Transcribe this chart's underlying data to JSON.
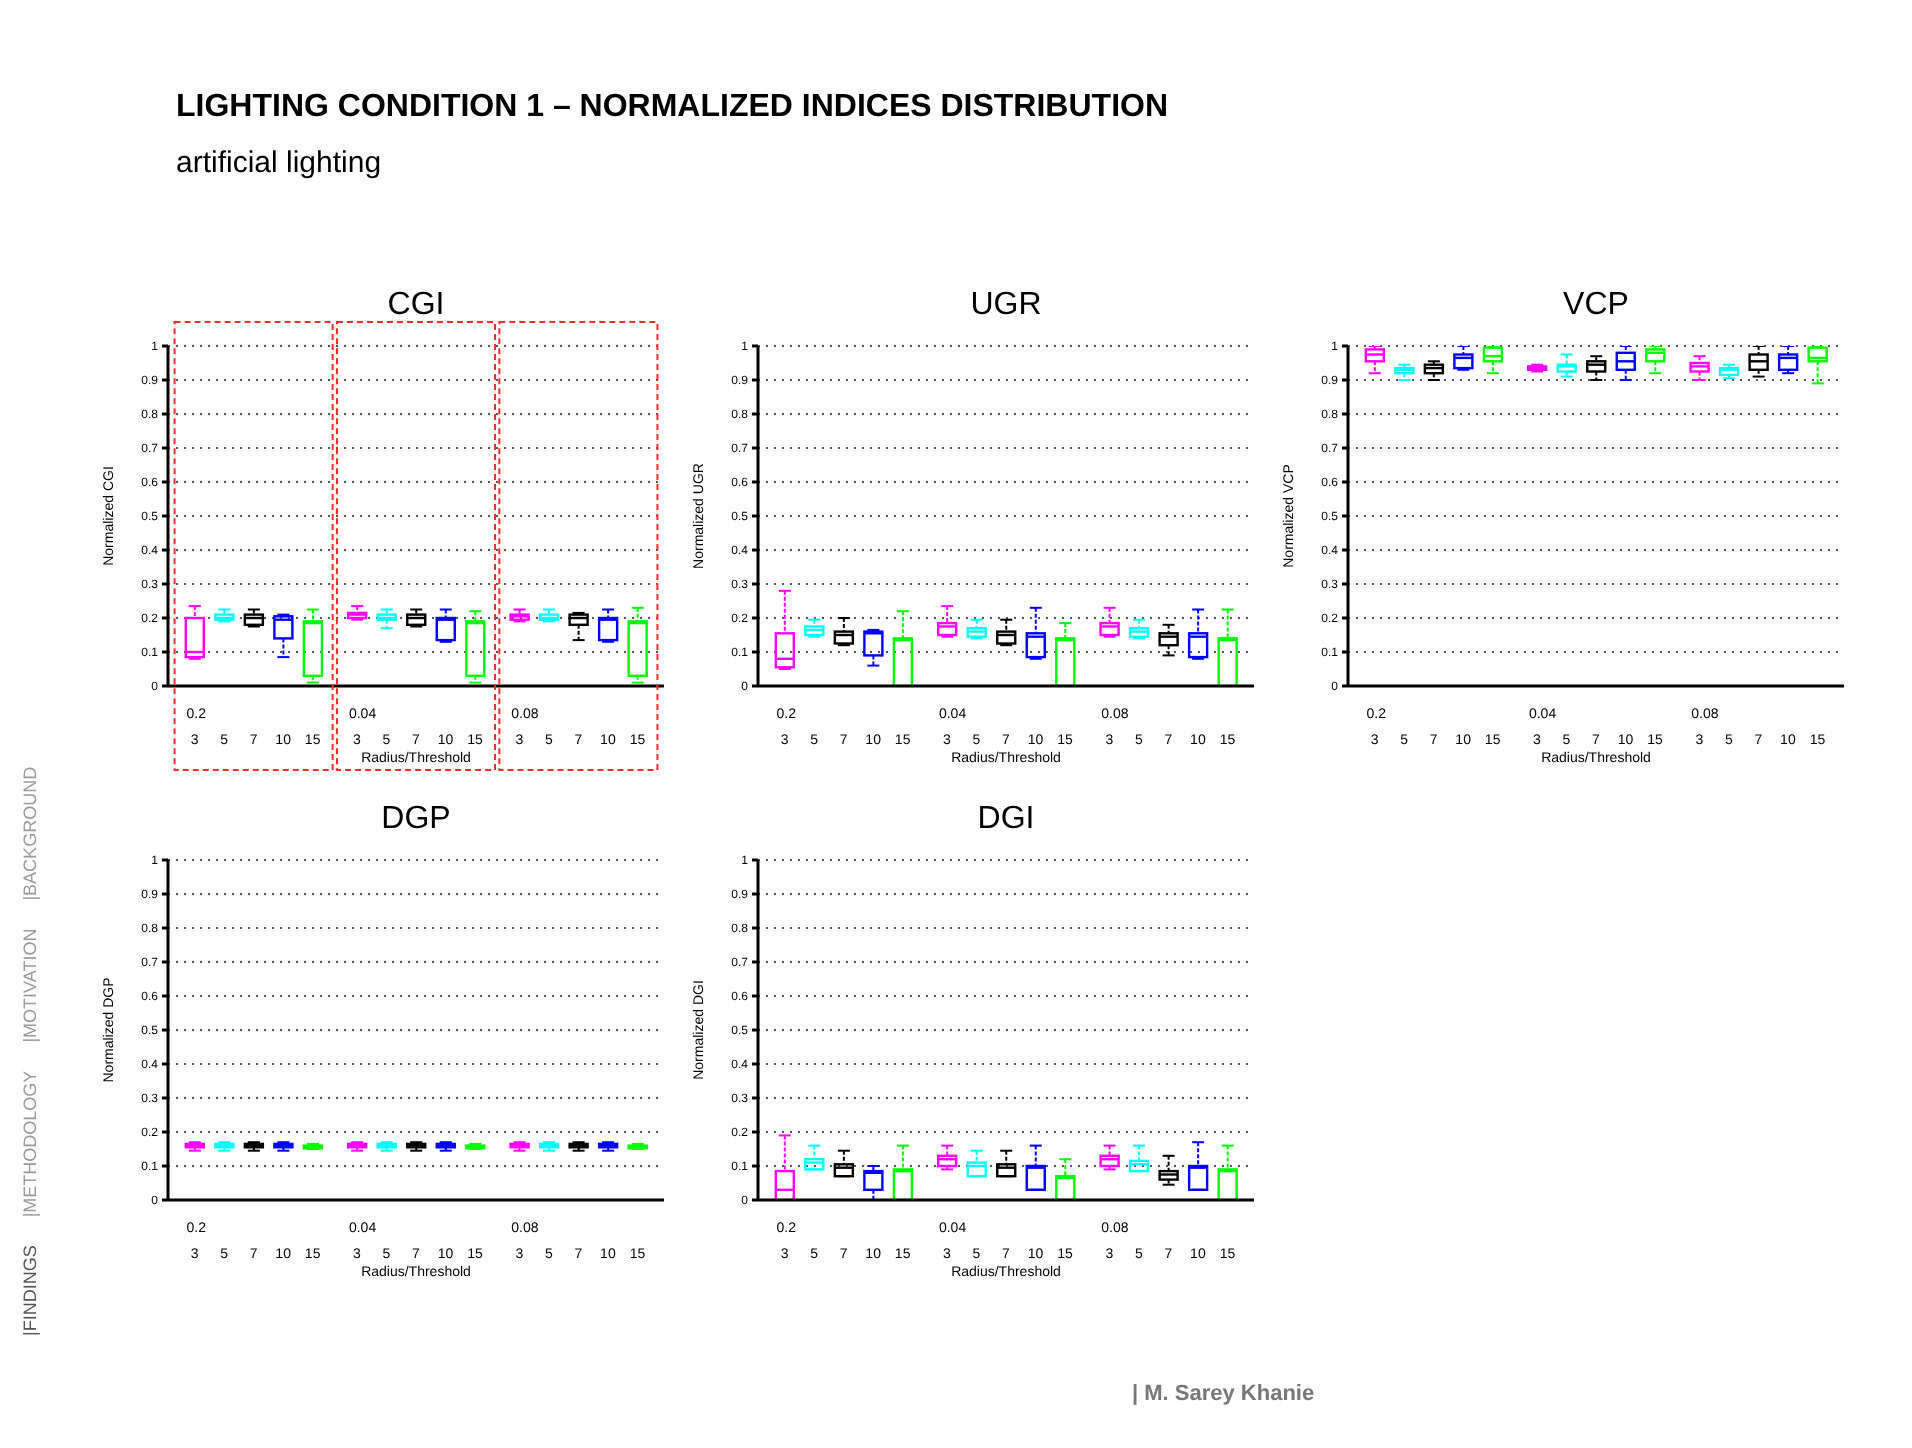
{
  "chart_data": [
    {
      "type": "other",
      "title": "LIGHTING CONDITION 1 – NORMALIZED INDICES DISTRIBUTION",
      "subtitle": "artificial lighting",
      "annotations": [
        "|BACKGROUND",
        "|MOTIVATION",
        "|METHODOLOGY",
        "|FINDINGS",
        "| M. Sarey Khanie"
      ]
    },
    {
      "type": "box",
      "title": "CGI",
      "xlabel": "Radius/Threshold",
      "ylabel": "Normalized CGI",
      "categories": [
        "3",
        "5",
        "7",
        "10",
        "15",
        "3",
        "5",
        "7",
        "10",
        "15",
        "3",
        "5",
        "7",
        "10",
        "15"
      ],
      "colors": [
        "#ff00ff",
        "#00ffff",
        "#000000",
        "#0000ff",
        "#00ff00",
        "#ff00ff",
        "#00ffff",
        "#000000",
        "#0000ff",
        "#00ff00",
        "#ff00ff",
        "#00ffff",
        "#000000",
        "#0000ff",
        "#00ff00"
      ],
      "ylim": [
        0,
        1
      ],
      "yticks": [
        0,
        0.1,
        0.2,
        0.3,
        0.4,
        0.5,
        0.6,
        0.7,
        0.8,
        0.9,
        1
      ],
      "grid": "y",
      "annotations": [
        "0.2",
        "0.04",
        "0.08"
      ],
      "boxes": [
        {
          "low": 0.08,
          "q1": 0.085,
          "median": 0.1,
          "q3": 0.2,
          "high": 0.235
        },
        {
          "low": 0.19,
          "q1": 0.195,
          "median": 0.2,
          "q3": 0.21,
          "high": 0.225
        },
        {
          "low": 0.175,
          "q1": 0.18,
          "median": 0.2,
          "q3": 0.21,
          "high": 0.225
        },
        {
          "low": 0.085,
          "q1": 0.14,
          "median": 0.195,
          "q3": 0.205,
          "high": 0.21
        },
        {
          "low": 0.01,
          "q1": 0.03,
          "median": 0.185,
          "q3": 0.19,
          "high": 0.225
        },
        {
          "low": 0.195,
          "q1": 0.2,
          "median": 0.21,
          "q3": 0.215,
          "high": 0.235
        },
        {
          "low": 0.17,
          "q1": 0.195,
          "median": 0.2,
          "q3": 0.21,
          "high": 0.225
        },
        {
          "low": 0.175,
          "q1": 0.18,
          "median": 0.2,
          "q3": 0.21,
          "high": 0.225
        },
        {
          "low": 0.13,
          "q1": 0.135,
          "median": 0.195,
          "q3": 0.2,
          "high": 0.225
        },
        {
          "low": 0.01,
          "q1": 0.03,
          "median": 0.185,
          "q3": 0.19,
          "high": 0.22
        },
        {
          "low": 0.19,
          "q1": 0.195,
          "median": 0.205,
          "q3": 0.21,
          "high": 0.225
        },
        {
          "low": 0.19,
          "q1": 0.195,
          "median": 0.2,
          "q3": 0.21,
          "high": 0.225
        },
        {
          "low": 0.135,
          "q1": 0.18,
          "median": 0.2,
          "q3": 0.21,
          "high": 0.215
        },
        {
          "low": 0.13,
          "q1": 0.135,
          "median": 0.195,
          "q3": 0.2,
          "high": 0.225
        },
        {
          "low": 0.01,
          "q1": 0.03,
          "median": 0.185,
          "q3": 0.19,
          "high": 0.23
        }
      ]
    },
    {
      "type": "box",
      "title": "UGR",
      "xlabel": "Radius/Threshold",
      "ylabel": "Normalized UGR",
      "categories": [
        "3",
        "5",
        "7",
        "10",
        "15",
        "3",
        "5",
        "7",
        "10",
        "15",
        "3",
        "5",
        "7",
        "10",
        "15"
      ],
      "colors": [
        "#ff00ff",
        "#00ffff",
        "#000000",
        "#0000ff",
        "#00ff00",
        "#ff00ff",
        "#00ffff",
        "#000000",
        "#0000ff",
        "#00ff00",
        "#ff00ff",
        "#00ffff",
        "#000000",
        "#0000ff",
        "#00ff00"
      ],
      "ylim": [
        0,
        1
      ],
      "yticks": [
        0,
        0.1,
        0.2,
        0.3,
        0.4,
        0.5,
        0.6,
        0.7,
        0.8,
        0.9,
        1
      ],
      "grid": "y",
      "annotations": [
        "0.2",
        "0.04",
        "0.08"
      ],
      "boxes": [
        {
          "low": 0.05,
          "q1": 0.055,
          "median": 0.08,
          "q3": 0.155,
          "high": 0.28
        },
        {
          "low": 0.145,
          "q1": 0.15,
          "median": 0.165,
          "q3": 0.175,
          "high": 0.195
        },
        {
          "low": 0.12,
          "q1": 0.125,
          "median": 0.15,
          "q3": 0.16,
          "high": 0.2
        },
        {
          "low": 0.06,
          "q1": 0.09,
          "median": 0.155,
          "q3": 0.16,
          "high": 0.165
        },
        {
          "low": 0,
          "q1": 0,
          "median": 0.135,
          "q3": 0.14,
          "high": 0.22
        },
        {
          "low": 0.145,
          "q1": 0.15,
          "median": 0.175,
          "q3": 0.185,
          "high": 0.235
        },
        {
          "low": 0.14,
          "q1": 0.145,
          "median": 0.16,
          "q3": 0.17,
          "high": 0.195
        },
        {
          "low": 0.12,
          "q1": 0.125,
          "median": 0.15,
          "q3": 0.16,
          "high": 0.195
        },
        {
          "low": 0.08,
          "q1": 0.085,
          "median": 0.145,
          "q3": 0.155,
          "high": 0.23
        },
        {
          "low": 0,
          "q1": 0,
          "median": 0.135,
          "q3": 0.14,
          "high": 0.185
        },
        {
          "low": 0.145,
          "q1": 0.15,
          "median": 0.175,
          "q3": 0.185,
          "high": 0.23
        },
        {
          "low": 0.14,
          "q1": 0.145,
          "median": 0.16,
          "q3": 0.17,
          "high": 0.195
        },
        {
          "low": 0.09,
          "q1": 0.12,
          "median": 0.145,
          "q3": 0.155,
          "high": 0.18
        },
        {
          "low": 0.08,
          "q1": 0.085,
          "median": 0.145,
          "q3": 0.155,
          "high": 0.225
        },
        {
          "low": 0,
          "q1": 0,
          "median": 0.135,
          "q3": 0.14,
          "high": 0.225
        }
      ]
    },
    {
      "type": "box",
      "title": "VCP",
      "xlabel": "Radius/Threshold",
      "ylabel": "Normalized VCP",
      "categories": [
        "3",
        "5",
        "7",
        "10",
        "15",
        "3",
        "5",
        "7",
        "10",
        "15",
        "3",
        "5",
        "7",
        "10",
        "15"
      ],
      "colors": [
        "#ff00ff",
        "#00ffff",
        "#000000",
        "#0000ff",
        "#00ff00",
        "#ff00ff",
        "#00ffff",
        "#000000",
        "#0000ff",
        "#00ff00",
        "#ff00ff",
        "#00ffff",
        "#000000",
        "#0000ff",
        "#00ff00"
      ],
      "ylim": [
        0,
        1
      ],
      "yticks": [
        0,
        0.1,
        0.2,
        0.3,
        0.4,
        0.5,
        0.6,
        0.7,
        0.8,
        0.9,
        1
      ],
      "grid": "y",
      "annotations": [
        "0.2",
        "0.04",
        "0.08"
      ],
      "boxes": [
        {
          "low": 0.92,
          "q1": 0.955,
          "median": 0.975,
          "q3": 0.99,
          "high": 1
        },
        {
          "low": 0.9,
          "q1": 0.92,
          "median": 0.93,
          "q3": 0.935,
          "high": 0.945
        },
        {
          "low": 0.9,
          "q1": 0.92,
          "median": 0.935,
          "q3": 0.945,
          "high": 0.955
        },
        {
          "low": 0.93,
          "q1": 0.935,
          "median": 0.965,
          "q3": 0.975,
          "high": 1
        },
        {
          "low": 0.92,
          "q1": 0.955,
          "median": 0.97,
          "q3": 0.995,
          "high": 1
        },
        {
          "low": 0.925,
          "q1": 0.93,
          "median": 0.935,
          "q3": 0.94,
          "high": 0.945
        },
        {
          "low": 0.91,
          "q1": 0.925,
          "median": 0.94,
          "q3": 0.945,
          "high": 0.975
        },
        {
          "low": 0.9,
          "q1": 0.925,
          "median": 0.945,
          "q3": 0.955,
          "high": 0.97
        },
        {
          "low": 0.9,
          "q1": 0.93,
          "median": 0.955,
          "q3": 0.98,
          "high": 1
        },
        {
          "low": 0.92,
          "q1": 0.955,
          "median": 0.98,
          "q3": 0.99,
          "high": 1
        },
        {
          "low": 0.9,
          "q1": 0.925,
          "median": 0.94,
          "q3": 0.95,
          "high": 0.97
        },
        {
          "low": 0.905,
          "q1": 0.915,
          "median": 0.93,
          "q3": 0.935,
          "high": 0.945
        },
        {
          "low": 0.91,
          "q1": 0.93,
          "median": 0.955,
          "q3": 0.975,
          "high": 1
        },
        {
          "low": 0.92,
          "q1": 0.93,
          "median": 0.965,
          "q3": 0.975,
          "high": 1
        },
        {
          "low": 0.89,
          "q1": 0.955,
          "median": 0.965,
          "q3": 0.995,
          "high": 1
        }
      ]
    },
    {
      "type": "box",
      "title": "DGP",
      "xlabel": "Radius/Threshold",
      "ylabel": "Normalized DGP",
      "categories": [
        "3",
        "5",
        "7",
        "10",
        "15",
        "3",
        "5",
        "7",
        "10",
        "15",
        "3",
        "5",
        "7",
        "10",
        "15"
      ],
      "colors": [
        "#ff00ff",
        "#00ffff",
        "#000000",
        "#0000ff",
        "#00ff00",
        "#ff00ff",
        "#00ffff",
        "#000000",
        "#0000ff",
        "#00ff00",
        "#ff00ff",
        "#00ffff",
        "#000000",
        "#0000ff",
        "#00ff00"
      ],
      "ylim": [
        0,
        1
      ],
      "yticks": [
        0,
        0.1,
        0.2,
        0.3,
        0.4,
        0.5,
        0.6,
        0.7,
        0.8,
        0.9,
        1
      ],
      "grid": "y",
      "annotations": [
        "0.2",
        "0.04",
        "0.08"
      ],
      "boxes": [
        {
          "low": 0.145,
          "q1": 0.155,
          "median": 0.16,
          "q3": 0.165,
          "high": 0.17
        },
        {
          "low": 0.145,
          "q1": 0.155,
          "median": 0.16,
          "q3": 0.165,
          "high": 0.17
        },
        {
          "low": 0.145,
          "q1": 0.155,
          "median": 0.16,
          "q3": 0.165,
          "high": 0.17
        },
        {
          "low": 0.145,
          "q1": 0.155,
          "median": 0.16,
          "q3": 0.165,
          "high": 0.17
        },
        {
          "low": 0.15,
          "q1": 0.152,
          "median": 0.157,
          "q3": 0.16,
          "high": 0.165
        },
        {
          "low": 0.145,
          "q1": 0.155,
          "median": 0.16,
          "q3": 0.165,
          "high": 0.17
        },
        {
          "low": 0.145,
          "q1": 0.155,
          "median": 0.16,
          "q3": 0.165,
          "high": 0.17
        },
        {
          "low": 0.145,
          "q1": 0.155,
          "median": 0.16,
          "q3": 0.165,
          "high": 0.17
        },
        {
          "low": 0.145,
          "q1": 0.155,
          "median": 0.16,
          "q3": 0.165,
          "high": 0.17
        },
        {
          "low": 0.15,
          "q1": 0.152,
          "median": 0.157,
          "q3": 0.16,
          "high": 0.165
        },
        {
          "low": 0.145,
          "q1": 0.155,
          "median": 0.16,
          "q3": 0.165,
          "high": 0.17
        },
        {
          "low": 0.145,
          "q1": 0.155,
          "median": 0.16,
          "q3": 0.165,
          "high": 0.17
        },
        {
          "low": 0.145,
          "q1": 0.155,
          "median": 0.16,
          "q3": 0.165,
          "high": 0.17
        },
        {
          "low": 0.145,
          "q1": 0.155,
          "median": 0.16,
          "q3": 0.165,
          "high": 0.17
        },
        {
          "low": 0.15,
          "q1": 0.152,
          "median": 0.157,
          "q3": 0.16,
          "high": 0.165
        }
      ]
    },
    {
      "type": "box",
      "title": "DGI",
      "xlabel": "Radius/Threshold",
      "ylabel": "Normalized DGI",
      "categories": [
        "3",
        "5",
        "7",
        "10",
        "15",
        "3",
        "5",
        "7",
        "10",
        "15",
        "3",
        "5",
        "7",
        "10",
        "15"
      ],
      "colors": [
        "#ff00ff",
        "#00ffff",
        "#000000",
        "#0000ff",
        "#00ff00",
        "#ff00ff",
        "#00ffff",
        "#000000",
        "#0000ff",
        "#00ff00",
        "#ff00ff",
        "#00ffff",
        "#000000",
        "#0000ff",
        "#00ff00"
      ],
      "ylim": [
        0,
        1
      ],
      "yticks": [
        0,
        0.1,
        0.2,
        0.3,
        0.4,
        0.5,
        0.6,
        0.7,
        0.8,
        0.9,
        1
      ],
      "grid": "y",
      "annotations": [
        "0.2",
        "0.04",
        "0.08"
      ],
      "boxes": [
        {
          "low": 0,
          "q1": 0,
          "median": 0.03,
          "q3": 0.085,
          "high": 0.19
        },
        {
          "low": 0.09,
          "q1": 0.09,
          "median": 0.11,
          "q3": 0.12,
          "high": 0.16
        },
        {
          "low": 0.07,
          "q1": 0.07,
          "median": 0.095,
          "q3": 0.105,
          "high": 0.145
        },
        {
          "low": 0,
          "q1": 0.03,
          "median": 0.08,
          "q3": 0.085,
          "high": 0.1
        },
        {
          "low": 0,
          "q1": 0,
          "median": 0.085,
          "q3": 0.09,
          "high": 0.16
        },
        {
          "low": 0.09,
          "q1": 0.1,
          "median": 0.12,
          "q3": 0.13,
          "high": 0.16
        },
        {
          "low": 0.07,
          "q1": 0.07,
          "median": 0.1,
          "q3": 0.11,
          "high": 0.145
        },
        {
          "low": 0.07,
          "q1": 0.07,
          "median": 0.095,
          "q3": 0.105,
          "high": 0.145
        },
        {
          "low": 0.03,
          "q1": 0.03,
          "median": 0.095,
          "q3": 0.1,
          "high": 0.16
        },
        {
          "low": 0,
          "q1": 0,
          "median": 0.065,
          "q3": 0.07,
          "high": 0.12
        },
        {
          "low": 0.09,
          "q1": 0.1,
          "median": 0.12,
          "q3": 0.13,
          "high": 0.16
        },
        {
          "low": 0.085,
          "q1": 0.085,
          "median": 0.105,
          "q3": 0.115,
          "high": 0.16
        },
        {
          "low": 0.045,
          "q1": 0.06,
          "median": 0.075,
          "q3": 0.085,
          "high": 0.13
        },
        {
          "low": 0.03,
          "q1": 0.03,
          "median": 0.095,
          "q3": 0.1,
          "high": 0.17
        },
        {
          "low": 0,
          "q1": 0,
          "median": 0.085,
          "q3": 0.09,
          "high": 0.16
        }
      ]
    }
  ]
}
